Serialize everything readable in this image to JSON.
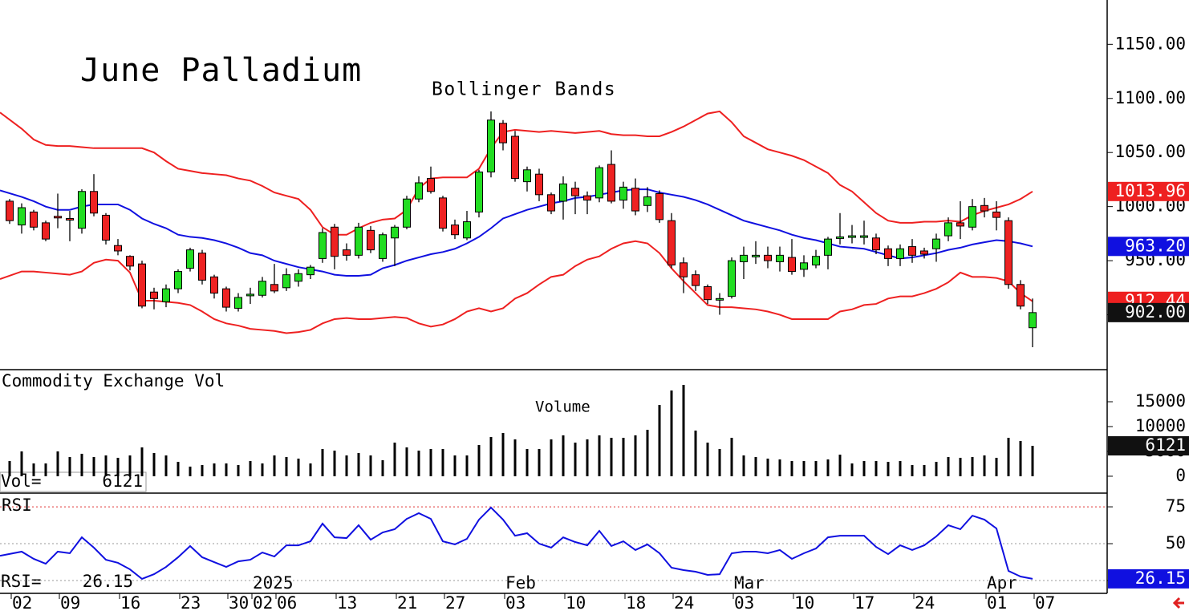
{
  "title": "June Palladium",
  "chart_data": [
    {
      "type": "candlestick",
      "subtitle": "Bollinger Bands",
      "categories": [
        "02",
        null,
        null,
        null,
        "09",
        null,
        null,
        null,
        null,
        "16",
        null,
        null,
        null,
        null,
        "23",
        null,
        null,
        null,
        "30",
        null,
        "02",
        null,
        "06",
        null,
        null,
        null,
        null,
        "13",
        null,
        null,
        null,
        null,
        "21",
        null,
        null,
        null,
        "27",
        null,
        null,
        null,
        null,
        "03",
        null,
        null,
        null,
        null,
        "10",
        null,
        null,
        null,
        null,
        "18",
        null,
        null,
        null,
        "24",
        null,
        null,
        null,
        null,
        "03",
        null,
        null,
        null,
        null,
        "10",
        null,
        null,
        null,
        null,
        "17",
        null,
        null,
        null,
        null,
        "24",
        null,
        null,
        null,
        null,
        null,
        "01",
        null,
        null,
        null,
        "07"
      ],
      "periods": [
        "2025",
        "Feb",
        "Mar",
        "Apr"
      ],
      "open": [
        1005,
        983,
        995,
        985,
        991,
        989,
        980,
        1014,
        992,
        964,
        954,
        947,
        921,
        912,
        924,
        943,
        957,
        935,
        924,
        906,
        918,
        918,
        928,
        925,
        931,
        937,
        952,
        981,
        960,
        955,
        978,
        952,
        971,
        981,
        1007,
        1026,
        1008,
        983,
        971,
        995,
        1032,
        1077,
        1065,
        1023,
        1030,
        1011,
        1005,
        1017,
        1010,
        1008,
        1039,
        1006,
        1017,
        1001,
        1012,
        987,
        948,
        937,
        926,
        914,
        917,
        949,
        954,
        955,
        949,
        953,
        942,
        946,
        955,
        971,
        972,
        972,
        971,
        961,
        952,
        963,
        959,
        961,
        973,
        985,
        981,
        1001,
        995,
        987,
        928,
        888
      ],
      "high": [
        1007,
        1003,
        997,
        987,
        1012,
        996,
        1016,
        1030,
        994,
        970,
        955,
        950,
        925,
        928,
        942,
        962,
        960,
        937,
        926,
        920,
        925,
        935,
        947,
        943,
        942,
        946,
        980,
        984,
        966,
        985,
        982,
        976,
        983,
        1010,
        1028,
        1037,
        1010,
        988,
        996,
        1034,
        1088,
        1080,
        1070,
        1037,
        1035,
        1013,
        1028,
        1023,
        1014,
        1038,
        1052,
        1023,
        1026,
        1018,
        1015,
        994,
        953,
        941,
        928,
        920,
        953,
        963,
        968,
        963,
        963,
        970,
        955,
        960,
        972,
        994,
        983,
        987,
        975,
        964,
        965,
        970,
        962,
        975,
        990,
        1005,
        1007,
        1008,
        1005,
        990,
        932,
        915
      ],
      "low": [
        984,
        975,
        978,
        968,
        980,
        968,
        975,
        991,
        965,
        955,
        941,
        906,
        905,
        907,
        920,
        940,
        928,
        915,
        903,
        903,
        910,
        916,
        920,
        922,
        926,
        933,
        948,
        942,
        950,
        952,
        957,
        949,
        945,
        979,
        1004,
        1012,
        977,
        970,
        969,
        990,
        1027,
        1052,
        1023,
        1014,
        1005,
        993,
        988,
        993,
        993,
        1004,
        1003,
        998,
        992,
        995,
        985,
        943,
        920,
        922,
        910,
        900,
        915,
        933,
        947,
        943,
        940,
        937,
        935,
        943,
        942,
        965,
        966,
        965,
        956,
        945,
        945,
        948,
        952,
        949,
        968,
        970,
        978,
        990,
        978,
        924,
        905,
        870
      ],
      "close": [
        987,
        999,
        981,
        970,
        990,
        988,
        1014,
        994,
        969,
        959,
        945,
        908,
        915,
        924,
        940,
        960,
        932,
        920,
        907,
        916,
        919,
        931,
        922,
        937,
        938,
        944,
        976,
        954,
        955,
        981,
        960,
        974,
        981,
        1007,
        1022,
        1014,
        980,
        974,
        986,
        1032,
        1080,
        1059,
        1026,
        1034,
        1011,
        996,
        1021,
        1010,
        1006,
        1036,
        1005,
        1018,
        996,
        1009,
        988,
        946,
        935,
        927,
        914,
        915,
        950,
        955,
        955,
        950,
        955,
        940,
        948,
        954,
        970,
        972,
        973,
        973,
        960,
        952,
        961,
        955,
        956,
        970,
        985,
        982,
        1000,
        996,
        990,
        928,
        908,
        902
      ],
      "close_label": "902.00",
      "up_color": "#22dd22",
      "down_color": "#ee2222",
      "close_label_color": "#111111",
      "bands": [
        {
          "color": "#ee2020",
          "last_label": "1013.96",
          "values": [
            1087,
            1072,
            1062,
            1057,
            1056,
            1056,
            1055,
            1054,
            1054,
            1054,
            1054,
            1054,
            1050,
            1042,
            1035,
            1033,
            1031,
            1030,
            1029,
            1026,
            1024,
            1019,
            1013,
            1010,
            1007,
            997,
            981,
            974,
            974,
            980,
            985,
            988,
            989,
            997,
            1017,
            1026,
            1027,
            1027,
            1027,
            1035,
            1054,
            1069,
            1071,
            1070,
            1069,
            1070,
            1069,
            1068,
            1069,
            1070,
            1067,
            1066,
            1066,
            1065,
            1065,
            1069,
            1074,
            1080,
            1086,
            1088,
            1078,
            1065,
            1059,
            1053,
            1050,
            1047,
            1043,
            1037,
            1031,
            1020,
            1014,
            1004,
            994,
            987,
            985,
            985,
            986,
            986,
            987,
            986,
            992,
            996,
            999,
            1002,
            1007,
            1013.96
          ]
        },
        {
          "color": "#1010e0",
          "last_label": "963.20",
          "values": [
            1015,
            1009,
            1005,
            1000,
            997,
            997,
            1000,
            1002,
            1002,
            1002,
            997,
            989,
            984,
            980,
            974,
            972,
            971,
            969,
            966,
            962,
            957,
            955,
            950,
            947,
            944,
            942,
            940,
            937,
            936,
            936,
            937,
            943,
            946,
            950,
            953,
            956,
            958,
            961,
            966,
            972,
            980,
            989,
            993,
            997,
            1000,
            1003,
            1005,
            1008,
            1009,
            1011,
            1013,
            1015,
            1016,
            1016,
            1013,
            1011,
            1009,
            1006,
            1002,
            997,
            992,
            987,
            984,
            981,
            978,
            974,
            971,
            969,
            966,
            963,
            962,
            961,
            958,
            955,
            952,
            953,
            955,
            957,
            960,
            962,
            965,
            967,
            969,
            968,
            966,
            963.2
          ]
        },
        {
          "color": "#ee2020",
          "last_label": "912.44",
          "values": [
            933,
            940,
            940,
            939,
            938,
            937,
            940,
            948,
            951,
            950,
            939,
            913,
            913,
            912,
            911,
            909,
            903,
            896,
            892,
            890,
            887,
            886,
            885,
            883,
            884,
            886,
            892,
            896,
            897,
            896,
            896,
            897,
            898,
            897,
            892,
            889,
            891,
            896,
            903,
            906,
            903,
            906,
            915,
            920,
            928,
            935,
            937,
            945,
            951,
            954,
            961,
            966,
            968,
            966,
            957,
            943,
            931,
            920,
            909,
            907,
            907,
            906,
            905,
            903,
            900,
            896,
            896,
            896,
            896,
            903,
            905,
            909,
            910,
            915,
            917,
            917,
            920,
            924,
            930,
            939,
            935,
            935,
            934,
            931,
            920,
            912.44
          ]
        }
      ],
      "ylim": [
        850,
        1191
      ],
      "yticks": [
        {
          "value": 900,
          "label": "900.00"
        },
        {
          "value": 950,
          "label": "950.00"
        },
        {
          "value": 1000,
          "label": "1000.00"
        },
        {
          "value": 1050,
          "label": "1050.00"
        },
        {
          "value": 1100,
          "label": "1100.00"
        },
        {
          "value": 1150,
          "label": "1150.00"
        }
      ]
    },
    {
      "type": "bar",
      "title": "Commodity Exchange Vol",
      "subtitle": "Volume",
      "readout": "Vol=",
      "color": "#000000",
      "values": [
        3060,
        5000,
        2580,
        2580,
        5000,
        3870,
        4520,
        3870,
        4190,
        3710,
        4190,
        5810,
        4680,
        4190,
        2900,
        1940,
        2260,
        2580,
        2580,
        2260,
        3060,
        2580,
        4190,
        3870,
        3550,
        2580,
        5480,
        5160,
        4190,
        4680,
        4190,
        3230,
        6770,
        5810,
        5160,
        5480,
        5480,
        4190,
        4190,
        6290,
        7900,
        8710,
        7420,
        5480,
        5480,
        7420,
        8230,
        6770,
        7420,
        8230,
        7740,
        7740,
        8230,
        9350,
        14350,
        17260,
        18390,
        9190,
        6770,
        5480,
        7740,
        4190,
        3870,
        3550,
        3390,
        3060,
        3060,
        3060,
        3390,
        4350,
        2580,
        3060,
        3060,
        2900,
        3060,
        2260,
        2260,
        2900,
        3870,
        3710,
        3870,
        4190,
        3710,
        7740,
        7100,
        6121
      ],
      "last_label": "6121",
      "last_label_color": "#111111",
      "ylim": [
        -3400,
        21300
      ],
      "yticks": [
        0,
        5000,
        10000,
        15000
      ]
    },
    {
      "type": "line",
      "title": "RSI",
      "readout": "RSI=",
      "color": "#1010e0",
      "values": [
        41.8,
        44.6,
        39.7,
        36.4,
        44.6,
        43.5,
        54.3,
        47.3,
        39.1,
        37.0,
        32.6,
        26.1,
        29.3,
        34.2,
        40.8,
        48.4,
        40.8,
        37.5,
        34.2,
        38.0,
        39.1,
        44.0,
        41.3,
        48.9,
        48.9,
        51.6,
        63.6,
        54.3,
        53.8,
        62.5,
        52.7,
        57.6,
        59.8,
        66.8,
        70.7,
        66.8,
        51.6,
        49.5,
        53.3,
        66.3,
        74.5,
        66.3,
        55.4,
        57.1,
        50.0,
        47.3,
        54.3,
        51.1,
        48.9,
        58.7,
        48.4,
        51.6,
        45.7,
        49.5,
        43.5,
        33.7,
        32.1,
        31.0,
        28.8,
        29.3,
        43.5,
        44.6,
        44.6,
        43.5,
        45.7,
        39.7,
        43.5,
        46.7,
        54.3,
        55.4,
        55.4,
        55.4,
        47.8,
        42.9,
        48.9,
        45.7,
        48.9,
        54.9,
        62.5,
        59.8,
        69.0,
        66.3,
        60.3,
        31.5,
        27.7,
        26.15
      ],
      "last_label": "26.15",
      "last_label_color": "#1010e0",
      "ylim": [
        16.3,
        83.2
      ],
      "yticks": [
        25,
        50,
        75
      ],
      "grid": true,
      "grid_colors": [
        "#999999",
        "#999999",
        "#e03030"
      ]
    }
  ]
}
